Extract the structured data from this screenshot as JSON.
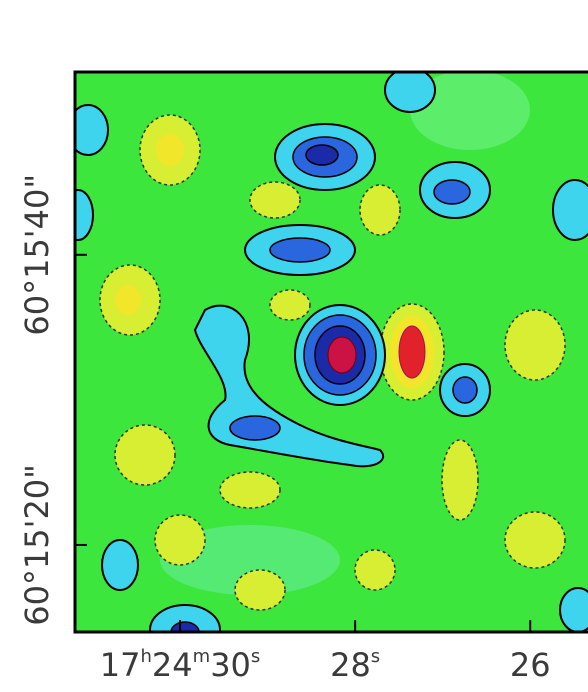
{
  "chart_data": {
    "type": "contour",
    "xlim": [
      31.2,
      25.34
    ],
    "xticks": [
      {
        "value": 30,
        "label": "17h24m30s"
      },
      {
        "value": 28,
        "label": "28s"
      },
      {
        "value": 26,
        "label": "26"
      }
    ],
    "ylim": [
      14.0,
      52.6
    ],
    "yticks": [
      {
        "value": 20,
        "label": "60°15'20\""
      },
      {
        "value": 40,
        "label": "60°15'40\""
      }
    ]
  }
}
